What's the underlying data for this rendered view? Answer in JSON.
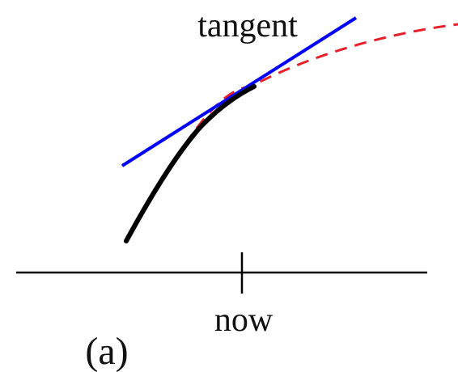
{
  "diagram": {
    "tangent_label": "tangent",
    "axis_tick_label": "now",
    "panel_label": "(a)",
    "colors": {
      "observed_curve": "#000000",
      "tangent_line": "#0000ff",
      "extrapolated_curve": "#e8202a",
      "axis": "#000000",
      "text": "#111111"
    }
  }
}
